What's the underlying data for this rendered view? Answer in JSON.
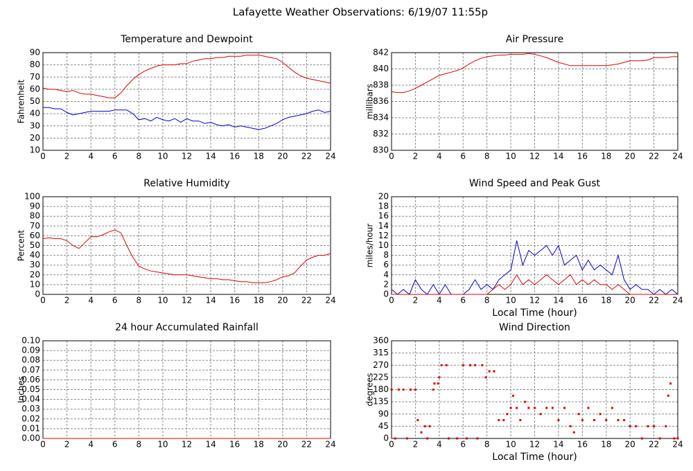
{
  "title": "Lafayette Weather Observations: 6/19/07 11:55p",
  "chart_data": [
    {
      "type": "line",
      "title": "Temperature and Dewpoint",
      "ylabel": "Fahrenheit",
      "xlim": [
        0,
        24
      ],
      "xticks": [
        0,
        2,
        4,
        6,
        8,
        10,
        12,
        14,
        16,
        18,
        20,
        22,
        24
      ],
      "ylim": [
        10,
        90
      ],
      "yticks": [
        10,
        20,
        30,
        40,
        50,
        60,
        70,
        80,
        90
      ],
      "grid": true,
      "x": [
        0,
        0.5,
        1,
        1.5,
        2,
        2.5,
        3,
        3.5,
        4,
        4.5,
        5,
        5.5,
        6,
        6.5,
        7,
        7.5,
        8,
        8.5,
        9,
        9.5,
        10,
        10.5,
        11,
        11.5,
        12,
        12.5,
        13,
        13.5,
        14,
        14.5,
        15,
        15.5,
        16,
        16.5,
        17,
        17.5,
        18,
        18.5,
        19,
        19.5,
        20,
        20.5,
        21,
        21.5,
        22,
        22.5,
        23,
        23.5,
        24
      ],
      "series": [
        {
          "color": "#dd0000",
          "values": [
            61,
            60,
            60,
            59,
            58,
            59,
            57,
            56,
            56,
            55,
            54,
            53,
            53,
            57,
            63,
            68,
            72,
            75,
            77,
            79,
            80,
            80,
            80,
            81,
            81,
            83,
            84,
            85,
            85,
            86,
            86,
            87,
            87,
            87,
            88,
            88,
            88,
            87,
            86,
            85,
            82,
            78,
            74,
            71,
            69,
            68,
            67,
            66,
            65
          ]
        },
        {
          "color": "#0000cc",
          "values": [
            45,
            45,
            44,
            44,
            41,
            39,
            40,
            41,
            42,
            42,
            42,
            42,
            43,
            43,
            43,
            40,
            35,
            36,
            34,
            37,
            35,
            34,
            36,
            33,
            36,
            34,
            34,
            32,
            33,
            31,
            30,
            31,
            29,
            30,
            29,
            28,
            27,
            28,
            30,
            32,
            35,
            37,
            38,
            39,
            40,
            42,
            43,
            41,
            42
          ]
        }
      ]
    },
    {
      "type": "line",
      "title": "Air Pressure",
      "ylabel": "millibars",
      "xlim": [
        0,
        24
      ],
      "xticks": [
        0,
        2,
        4,
        6,
        8,
        10,
        12,
        14,
        16,
        18,
        20,
        22,
        24
      ],
      "ylim": [
        830,
        842
      ],
      "yticks": [
        830,
        832,
        834,
        836,
        838,
        840,
        842
      ],
      "grid": true,
      "x": [
        0,
        0.5,
        1,
        1.5,
        2,
        2.5,
        3,
        3.5,
        4,
        4.5,
        5,
        5.5,
        6,
        6.5,
        7,
        7.5,
        8,
        8.5,
        9,
        9.5,
        10,
        10.5,
        11,
        11.5,
        12,
        12.5,
        13,
        13.5,
        14,
        14.5,
        15,
        15.5,
        16,
        16.5,
        17,
        17.5,
        18,
        18.5,
        19,
        19.5,
        20,
        20.5,
        21,
        21.5,
        22,
        22.5,
        23,
        23.5,
        24
      ],
      "series": [
        {
          "color": "#dd0000",
          "values": [
            837.2,
            837.1,
            837.1,
            837.3,
            837.6,
            838.0,
            838.4,
            838.8,
            839.2,
            839.4,
            839.6,
            839.8,
            840.1,
            840.6,
            841.0,
            841.3,
            841.5,
            841.6,
            841.7,
            841.7,
            841.8,
            841.8,
            841.8,
            841.9,
            841.8,
            841.6,
            841.4,
            841.1,
            840.8,
            840.6,
            840.4,
            840.4,
            840.4,
            840.4,
            840.4,
            840.4,
            840.4,
            840.5,
            840.6,
            840.8,
            841.0,
            841.0,
            841.0,
            841.1,
            841.4,
            841.4,
            841.4,
            841.5,
            841.5
          ]
        }
      ]
    },
    {
      "type": "line",
      "title": "Relative Humidity",
      "ylabel": "Percent",
      "xlim": [
        0,
        24
      ],
      "xticks": [
        0,
        2,
        4,
        6,
        8,
        10,
        12,
        14,
        16,
        18,
        20,
        22,
        24
      ],
      "ylim": [
        0,
        100
      ],
      "yticks": [
        0,
        10,
        20,
        30,
        40,
        50,
        60,
        70,
        80,
        90,
        100
      ],
      "grid": true,
      "x": [
        0,
        0.5,
        1,
        1.5,
        2,
        2.5,
        3,
        3.5,
        4,
        4.5,
        5,
        5.5,
        6,
        6.5,
        7,
        7.5,
        8,
        8.5,
        9,
        9.5,
        10,
        10.5,
        11,
        11.5,
        12,
        12.5,
        13,
        13.5,
        14,
        14.5,
        15,
        15.5,
        16,
        16.5,
        17,
        17.5,
        18,
        18.5,
        19,
        19.5,
        20,
        20.5,
        21,
        21.5,
        22,
        22.5,
        23,
        23.5,
        24
      ],
      "series": [
        {
          "color": "#dd0000",
          "values": [
            57,
            58,
            57,
            57,
            55,
            50,
            47,
            53,
            59,
            59,
            61,
            64,
            66,
            63,
            50,
            38,
            29,
            26,
            24,
            23,
            22,
            21,
            20,
            20,
            20,
            19,
            18,
            17,
            16,
            16,
            15,
            15,
            14,
            13,
            13,
            12,
            12,
            12,
            13,
            15,
            18,
            19,
            22,
            29,
            35,
            38,
            40,
            40,
            42
          ]
        }
      ]
    },
    {
      "type": "line",
      "title": "Wind Speed and Peak Gust",
      "ylabel": "miles/hour",
      "xlabel": "Local Time (hour)",
      "xlim": [
        0,
        24
      ],
      "xticks": [
        0,
        2,
        4,
        6,
        8,
        10,
        12,
        14,
        16,
        18,
        20,
        22,
        24
      ],
      "ylim": [
        0,
        20
      ],
      "yticks": [
        0,
        2,
        4,
        6,
        8,
        10,
        12,
        14,
        16,
        18,
        20
      ],
      "grid": true,
      "x": [
        0,
        0.5,
        1,
        1.5,
        2,
        2.5,
        3,
        3.5,
        4,
        4.5,
        5,
        5.5,
        6,
        6.5,
        7,
        7.5,
        8,
        8.5,
        9,
        9.5,
        10,
        10.5,
        11,
        11.5,
        12,
        12.5,
        13,
        13.5,
        14,
        14.5,
        15,
        15.5,
        16,
        16.5,
        17,
        17.5,
        18,
        18.5,
        19,
        19.5,
        20,
        20.5,
        21,
        21.5,
        22,
        22.5,
        23,
        23.5,
        24
      ],
      "series": [
        {
          "color": "#0000cc",
          "values": [
            1,
            0,
            1,
            0,
            3,
            1,
            0,
            2,
            0,
            2,
            0,
            0,
            0,
            1,
            3,
            1,
            2,
            1,
            3,
            4,
            5,
            11,
            6,
            9,
            8,
            9,
            10,
            8,
            10,
            6,
            7,
            8,
            5,
            7,
            5,
            6,
            5,
            4,
            8,
            3,
            1,
            2,
            1,
            1,
            0,
            1,
            0,
            1,
            0
          ]
        },
        {
          "color": "#dd0000",
          "values": [
            0,
            0,
            0,
            0,
            0,
            0,
            0,
            0,
            0,
            0,
            0,
            0,
            0,
            0,
            0,
            0,
            0,
            1,
            2,
            1,
            2,
            4,
            2,
            3,
            2,
            3,
            4,
            3,
            2,
            3,
            4,
            2,
            3,
            2,
            3,
            2,
            2,
            1,
            2,
            1,
            0,
            0,
            0,
            0,
            0,
            0,
            0,
            0,
            0
          ]
        }
      ]
    },
    {
      "type": "line",
      "title": "24 hour Accumulated Rainfall",
      "ylabel": "Inches",
      "xlim": [
        0,
        24
      ],
      "xticks": [
        0,
        2,
        4,
        6,
        8,
        10,
        12,
        14,
        16,
        18,
        20,
        22,
        24
      ],
      "ylim": [
        0,
        0.1
      ],
      "yticks": [
        {
          "value": 0,
          "label": "0.00"
        },
        0.01,
        0.02,
        0.03,
        0.04,
        0.05,
        0.06,
        0.07,
        0.08,
        0.09,
        {
          "value": 0.1,
          "label": "0.10"
        }
      ],
      "grid": true,
      "x": [
        0,
        24
      ],
      "series": [
        {
          "color": "#dd0000",
          "values": [
            0,
            0
          ]
        }
      ]
    },
    {
      "type": "scatter",
      "title": "Wind Direction",
      "ylabel": "degrees",
      "xlabel": "Local Time (hour)",
      "xlim": [
        0,
        24
      ],
      "xticks": [
        0,
        2,
        4,
        6,
        8,
        10,
        12,
        14,
        16,
        18,
        20,
        22,
        24
      ],
      "ylim": [
        0,
        360
      ],
      "yticks": [
        0,
        45,
        90,
        135,
        180,
        225,
        270,
        315,
        360
      ],
      "grid": true,
      "x": [
        0,
        0.3,
        0.6,
        1,
        1.3,
        1.6,
        2,
        2.2,
        2.5,
        2.8,
        3,
        3.2,
        3.5,
        3.6,
        3.9,
        4,
        4.2,
        4.6,
        4.8,
        5.5,
        6,
        6.3,
        6.6,
        7,
        7.2,
        7.6,
        7.9,
        8.2,
        8.6,
        9,
        9.4,
        9.7,
        10,
        10.2,
        10.5,
        10.8,
        11.2,
        11.5,
        12,
        12.5,
        13,
        13.5,
        14,
        14.5,
        15,
        15.3,
        15.7,
        16,
        16.5,
        17,
        17.5,
        18,
        18.5,
        19,
        19.5,
        20,
        20.5,
        21,
        21.5,
        22,
        22.5,
        23,
        23.2,
        23.4,
        23.7,
        24
      ],
      "series": [
        {
          "color": "#dd0000",
          "values": [
            180,
            0,
            180,
            180,
            0,
            180,
            180,
            67.5,
            22.5,
            45,
            0,
            45,
            180,
            202.5,
            202.5,
            225,
            270,
            270,
            0,
            0,
            270,
            0,
            270,
            270,
            0,
            270,
            225,
            247.5,
            247.5,
            67.5,
            67.5,
            90,
            112.5,
            157.5,
            112.5,
            67.5,
            135,
            112.5,
            112.5,
            90,
            112.5,
            112.5,
            67.5,
            112.5,
            45,
            22.5,
            90,
            67.5,
            112.5,
            67.5,
            90,
            67.5,
            112.5,
            67.5,
            67.5,
            45,
            45,
            0,
            45,
            45,
            0,
            45,
            157.5,
            202.5,
            0,
            0
          ]
        }
      ]
    }
  ]
}
